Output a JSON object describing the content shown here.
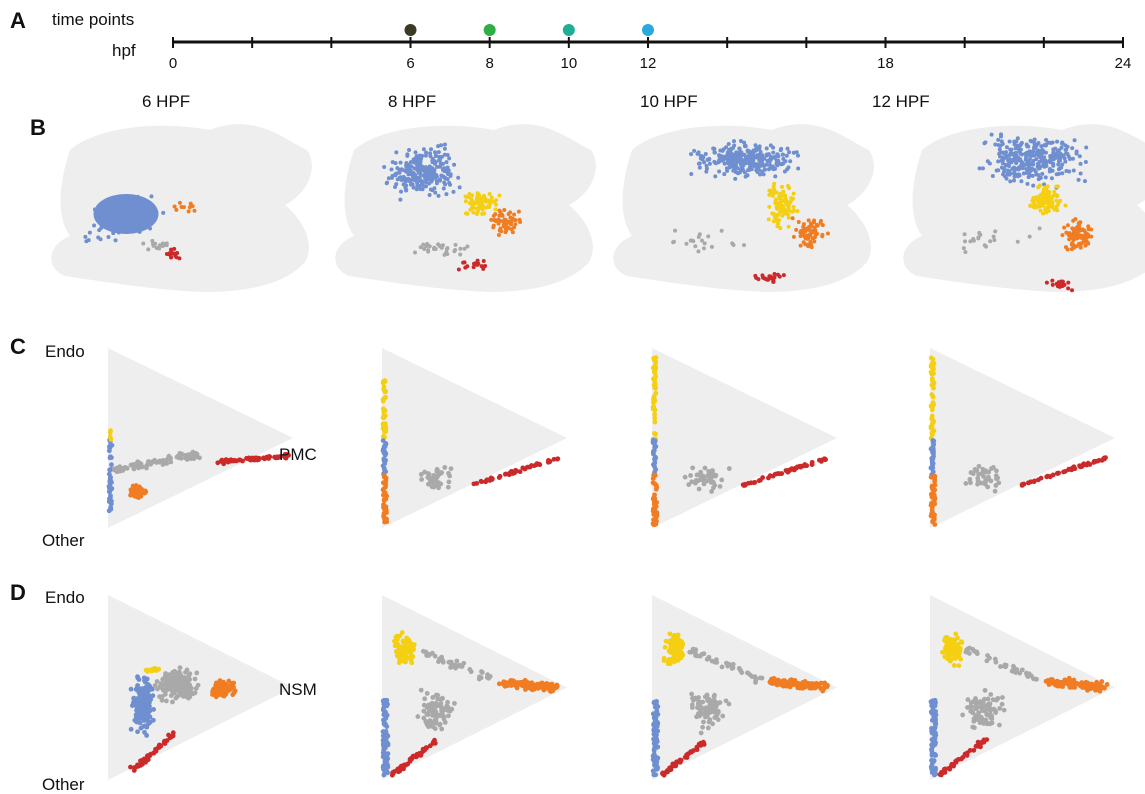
{
  "panel_labels": [
    "A",
    "B",
    "C",
    "D"
  ],
  "timeline": {
    "row_label": "time points",
    "axis_label": "hpf",
    "ticks": [
      "0",
      "6",
      "8",
      "10",
      "12",
      "18",
      "24"
    ],
    "min": 0,
    "max": 24,
    "points": [
      {
        "hpf": 6,
        "color": "#3b3a25"
      },
      {
        "hpf": 8,
        "color": "#2fae45"
      },
      {
        "hpf": 10,
        "color": "#1fae93"
      },
      {
        "hpf": 12,
        "color": "#29a9e0"
      }
    ]
  },
  "columns": [
    "6 HPF",
    "8 HPF",
    "10 HPF",
    "12 HPF"
  ],
  "colors": {
    "blue": "#6f8fd0",
    "yellow": "#f5cf12",
    "orange": "#f07d23",
    "red": "#cc2a2a",
    "grey": "#a9a9a9",
    "background": "#eeeeee"
  },
  "panel_C": {
    "top_label": "Endo",
    "bottom_label": "Other",
    "right_label": "PMC"
  },
  "panel_D": {
    "top_label": "Endo",
    "bottom_label": "Other",
    "right_label": "NSM"
  }
}
